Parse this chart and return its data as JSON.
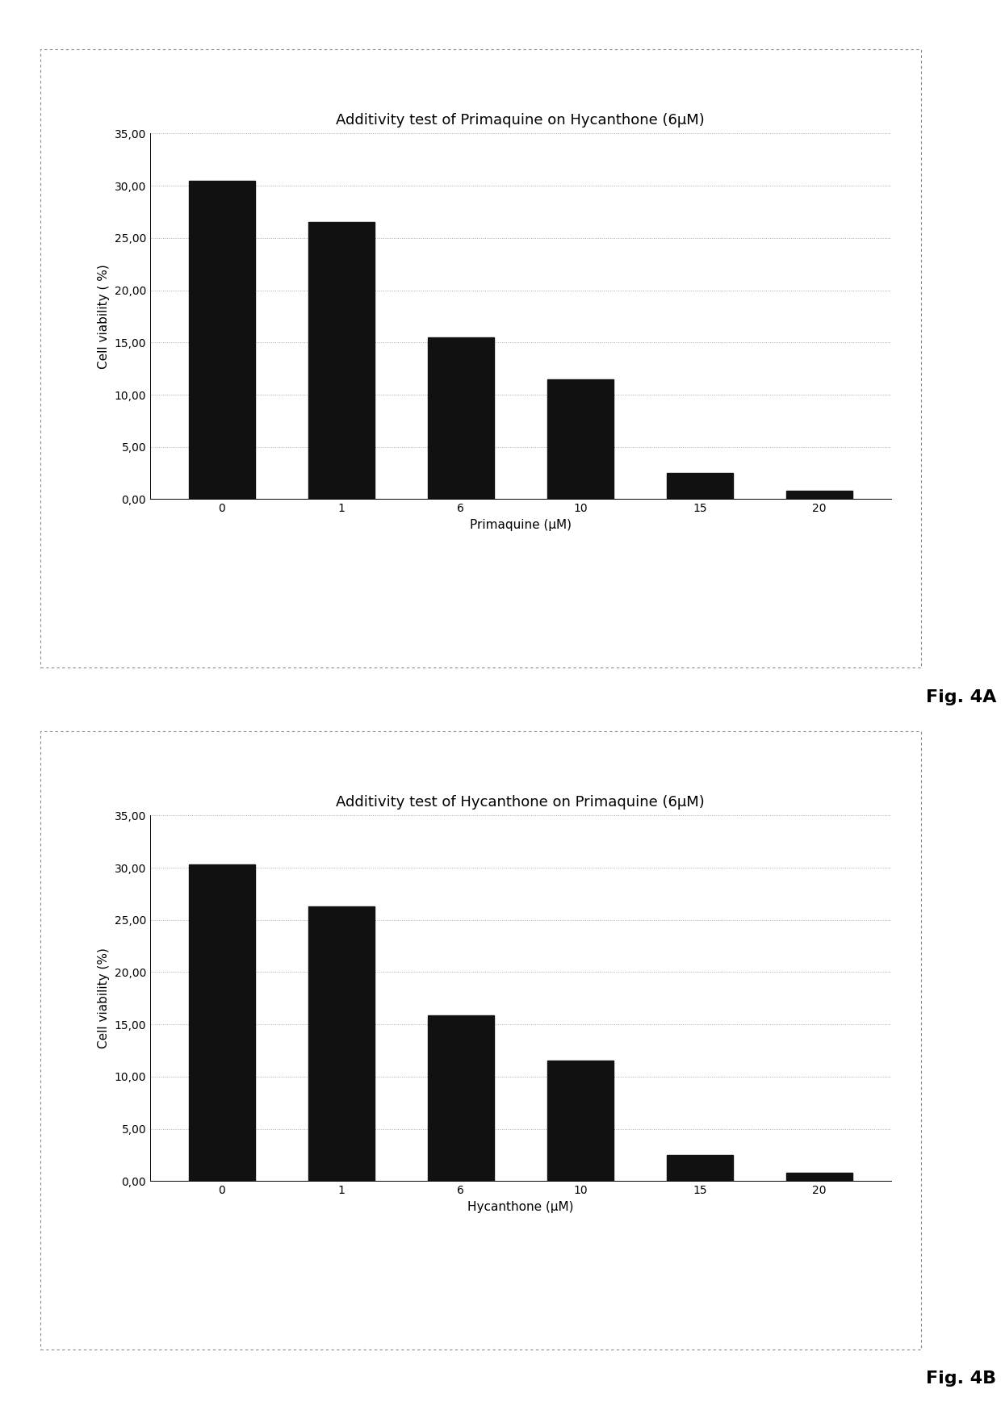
{
  "chart_a": {
    "title": "Additivity test of Primaquine on Hycanthone (6μM)",
    "xlabel": "Primaquine (μM)",
    "ylabel": "Cell viability ( %)",
    "categories": [
      "0",
      "1",
      "6",
      "10",
      "15",
      "20"
    ],
    "values": [
      30.5,
      26.5,
      15.5,
      11.5,
      2.5,
      0.8
    ],
    "fig_label": "Fig. 4A"
  },
  "chart_b": {
    "title": "Additivity test of Hycanthone on Primaquine (6μM)",
    "xlabel": "Hycanthone (μM)",
    "ylabel": "Cell viability (%)",
    "categories": [
      "0",
      "1",
      "6",
      "10",
      "15",
      "20"
    ],
    "values": [
      30.3,
      26.3,
      15.9,
      11.5,
      2.5,
      0.8
    ],
    "fig_label": "Fig. 4B"
  },
  "ylim": [
    0,
    35
  ],
  "yticks": [
    0.0,
    5.0,
    10.0,
    15.0,
    20.0,
    25.0,
    30.0,
    35.0
  ],
  "ytick_labels": [
    "0,00",
    "5,00",
    "10,00",
    "15,00",
    "20,00",
    "25,00",
    "30,00",
    "35,00"
  ],
  "bar_color": "#111111",
  "bar_width": 0.55,
  "grid_color": "#aaaaaa",
  "grid_linestyle": ":",
  "background_color": "#ffffff",
  "title_fontsize": 13,
  "label_fontsize": 11,
  "tick_fontsize": 10,
  "fig_label_fontsize": 16
}
